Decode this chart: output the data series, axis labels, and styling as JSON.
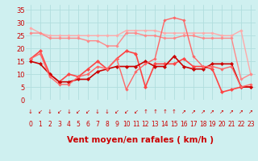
{
  "xlabel": "Vent moyen/en rafales ( km/h )",
  "background_color": "#cff0f0",
  "grid_color": "#b0dede",
  "xlim": [
    -0.5,
    23.5
  ],
  "ylim": [
    0,
    37
  ],
  "yticks": [
    0,
    5,
    10,
    15,
    20,
    25,
    30,
    35
  ],
  "xticks": [
    0,
    1,
    2,
    3,
    4,
    5,
    6,
    7,
    8,
    9,
    10,
    11,
    12,
    13,
    14,
    15,
    16,
    17,
    18,
    19,
    20,
    21,
    22,
    23
  ],
  "lines": [
    {
      "x": [
        0,
        1,
        2,
        3,
        4,
        5,
        6,
        7,
        8,
        9,
        10,
        11,
        12,
        13,
        14,
        15,
        16,
        17,
        18,
        19,
        20,
        21,
        22,
        23
      ],
      "y": [
        28,
        26,
        25,
        25,
        25,
        25,
        25,
        25,
        25,
        25,
        27,
        27,
        27,
        27,
        26,
        26,
        26,
        26,
        26,
        26,
        25,
        25,
        27,
        10
      ],
      "color": "#ffaaaa",
      "linewidth": 1.0,
      "marker": "D",
      "markersize": 1.8
    },
    {
      "x": [
        0,
        1,
        2,
        3,
        4,
        5,
        6,
        7,
        8,
        9,
        10,
        11,
        12,
        13,
        14,
        15,
        16,
        17,
        18,
        19,
        20,
        21,
        22,
        23
      ],
      "y": [
        26,
        26,
        24,
        24,
        24,
        24,
        23,
        23,
        21,
        21,
        26,
        26,
        25,
        25,
        24,
        24,
        25,
        25,
        24,
        24,
        24,
        24,
        8,
        10
      ],
      "color": "#ff8888",
      "linewidth": 1.0,
      "marker": "D",
      "markersize": 1.8
    },
    {
      "x": [
        0,
        1,
        2,
        3,
        4,
        5,
        6,
        7,
        8,
        9,
        10,
        11,
        12,
        13,
        14,
        15,
        16,
        17,
        18,
        19,
        20,
        21,
        22,
        23
      ],
      "y": [
        16,
        19,
        10,
        7,
        10,
        9,
        12,
        15,
        12,
        16,
        19,
        18,
        5,
        14,
        14,
        14,
        16,
        13,
        13,
        12,
        3,
        4,
        5,
        5
      ],
      "color": "#ff4444",
      "linewidth": 1.2,
      "marker": "D",
      "markersize": 2.2
    },
    {
      "x": [
        0,
        1,
        2,
        3,
        4,
        5,
        6,
        7,
        8,
        9,
        10,
        11,
        12,
        13,
        14,
        15,
        16,
        17,
        18,
        19,
        20,
        21,
        22,
        23
      ],
      "y": [
        15,
        14,
        10,
        7,
        7,
        8,
        8,
        11,
        12,
        13,
        13,
        13,
        15,
        13,
        13,
        17,
        13,
        12,
        12,
        14,
        14,
        14,
        5,
        5
      ],
      "color": "#cc0000",
      "linewidth": 1.2,
      "marker": "D",
      "markersize": 2.2
    },
    {
      "x": [
        0,
        1,
        2,
        3,
        4,
        5,
        6,
        7,
        8,
        9,
        10,
        11,
        12,
        13,
        14,
        15,
        16,
        17,
        18,
        19,
        20,
        21,
        22,
        23
      ],
      "y": [
        16,
        18,
        9,
        6,
        6,
        9,
        10,
        13,
        12,
        16,
        4,
        11,
        14,
        16,
        31,
        32,
        31,
        17,
        13,
        13,
        12,
        13,
        5,
        6
      ],
      "color": "#ff6666",
      "linewidth": 1.0,
      "marker": "D",
      "markersize": 1.8
    }
  ],
  "wind_arrows": [
    "↓",
    "↙",
    "↓",
    "↙",
    "↓",
    "↙",
    "↙",
    "↓",
    "↓",
    "↙",
    "↙",
    "↙",
    "↑",
    "↑",
    "↑",
    "↑",
    "↗",
    "↗",
    "↗",
    "↗",
    "↗",
    "↗",
    "↗",
    "↗"
  ],
  "xlabel_color": "#cc0000",
  "xlabel_fontsize": 7.5,
  "tick_color": "#cc0000",
  "tick_fontsize": 5.5,
  "ytick_fontsize": 6
}
